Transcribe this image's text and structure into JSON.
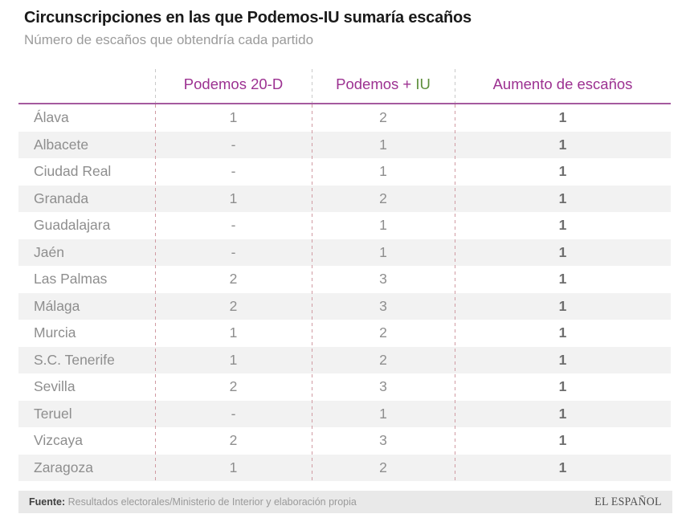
{
  "page": {
    "title": "Circunscripciones en las que Podemos-IU sumaría escaños",
    "subtitle": "Número de escaños que obtendría cada partido"
  },
  "table": {
    "columns": {
      "province": "",
      "podemos_20d": "Podemos 20-D",
      "podemos_iu_main": "Podemos + ",
      "podemos_iu_accent": "IU",
      "aumento": "Aumento de escaños"
    },
    "rows": [
      {
        "province": "Álava",
        "podemos_20d": "1",
        "podemos_iu": "2",
        "aumento": "1"
      },
      {
        "province": "Albacete",
        "podemos_20d": "-",
        "podemos_iu": "1",
        "aumento": "1"
      },
      {
        "province": "Ciudad Real",
        "podemos_20d": "-",
        "podemos_iu": "1",
        "aumento": "1"
      },
      {
        "province": "Granada",
        "podemos_20d": "1",
        "podemos_iu": "2",
        "aumento": "1"
      },
      {
        "province": "Guadalajara",
        "podemos_20d": "-",
        "podemos_iu": "1",
        "aumento": "1"
      },
      {
        "province": "Jaén",
        "podemos_20d": "-",
        "podemos_iu": "1",
        "aumento": "1"
      },
      {
        "province": "Las Palmas",
        "podemos_20d": "2",
        "podemos_iu": "3",
        "aumento": "1"
      },
      {
        "province": "Málaga",
        "podemos_20d": "2",
        "podemos_iu": "3",
        "aumento": "1"
      },
      {
        "province": "Murcia",
        "podemos_20d": "1",
        "podemos_iu": "2",
        "aumento": "1"
      },
      {
        "province": "S.C. Tenerife",
        "podemos_20d": "1",
        "podemos_iu": "2",
        "aumento": "1"
      },
      {
        "province": "Sevilla",
        "podemos_20d": "2",
        "podemos_iu": "3",
        "aumento": "1"
      },
      {
        "province": "Teruel",
        "podemos_20d": "-",
        "podemos_iu": "1",
        "aumento": "1"
      },
      {
        "province": "Vizcaya",
        "podemos_20d": "2",
        "podemos_iu": "3",
        "aumento": "1"
      },
      {
        "province": "Zaragoza",
        "podemos_20d": "1",
        "podemos_iu": "2",
        "aumento": "1"
      }
    ]
  },
  "footer": {
    "source_label": "Fuente:",
    "source_text": " Resultados electorales/Ministerio de Interior y elaboración propia",
    "brand": "EL ESPAÑOL"
  },
  "colors": {
    "accent_purple": "#9c3191",
    "accent_green": "#5e8f3c",
    "header_rule": "#a55a9e",
    "row_stripe": "#f2f2f2",
    "body_text": "#8e8e8e",
    "bold_value": "#6d6d6d",
    "title_text": "#1a1a1a",
    "subtitle_text": "#9b9b9b",
    "sep_gray": "#c9c9c9",
    "sep_pink": "#d09aa2",
    "footer_bg": "#e9e9e9",
    "footer_text": "#9a9a9a",
    "footer_label": "#3f3f3f",
    "brand_text": "#4e4e4e"
  },
  "chart_data": {
    "type": "table",
    "title": "Circunscripciones en las que Podemos-IU sumaría escaños",
    "subtitle": "Número de escaños que obtendría cada partido",
    "categories": [
      "Álava",
      "Albacete",
      "Ciudad Real",
      "Granada",
      "Guadalajara",
      "Jaén",
      "Las Palmas",
      "Málaga",
      "Murcia",
      "S.C. Tenerife",
      "Sevilla",
      "Teruel",
      "Vizcaya",
      "Zaragoza"
    ],
    "series": [
      {
        "name": "Podemos 20-D",
        "values": [
          1,
          null,
          null,
          1,
          null,
          null,
          2,
          2,
          1,
          1,
          2,
          null,
          2,
          1
        ]
      },
      {
        "name": "Podemos + IU",
        "values": [
          2,
          1,
          1,
          2,
          1,
          1,
          3,
          3,
          2,
          2,
          3,
          1,
          3,
          2
        ]
      },
      {
        "name": "Aumento de escaños",
        "values": [
          1,
          1,
          1,
          1,
          1,
          1,
          1,
          1,
          1,
          1,
          1,
          1,
          1,
          1
        ]
      }
    ],
    "notes": "null = '-' (sin escaño)"
  }
}
